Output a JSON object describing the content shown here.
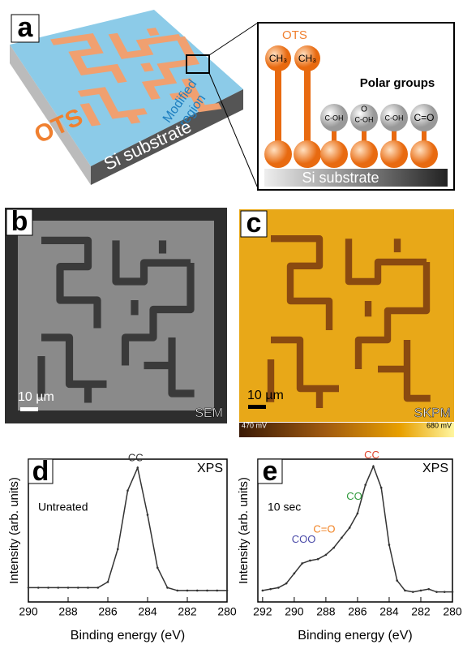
{
  "panel_a": {
    "label": "a",
    "ots": "OTS",
    "modified": [
      "Modified",
      "region"
    ],
    "substrate": "Si substrate",
    "inset": {
      "ots": "OTS",
      "ch3": [
        "CH₃",
        "CH₃"
      ],
      "polar": "Polar groups",
      "groups": [
        "C-OH",
        "O",
        "C-OH",
        "C-OH",
        "C=O"
      ],
      "substrate": "Si substrate"
    }
  },
  "panel_b": {
    "label": "b",
    "scale": "10 µm",
    "tag": "SEM"
  },
  "panel_c": {
    "label": "c",
    "scale": "10 µm",
    "tag": "SKPM",
    "colorbar": [
      "470 mV",
      "680 mV"
    ]
  },
  "chart_data": [
    {
      "type": "line",
      "panel": "d",
      "tag": "XPS",
      "annotation": "Untreated",
      "x_label": "Binding energy (eV)",
      "y_label": "Intensity (arb. units)",
      "x": [
        290,
        289.5,
        289,
        288.5,
        288,
        287.5,
        287,
        286.5,
        286,
        285.5,
        285,
        284.5,
        284,
        283.5,
        283,
        282.5,
        282,
        281.5,
        281,
        280.5,
        280
      ],
      "series": [
        {
          "color": "#333333",
          "values": [
            0.1,
            0.1,
            0.1,
            0.1,
            0.1,
            0.1,
            0.1,
            0.1,
            0.14,
            0.37,
            0.78,
            0.94,
            0.61,
            0.24,
            0.1,
            0.08,
            0.08,
            0.08,
            0.08,
            0.08,
            0.08
          ]
        }
      ],
      "peak_labels": [
        {
          "text": "CC",
          "color": "#333333"
        }
      ],
      "xlim": [
        290,
        280
      ],
      "xticks": [
        290,
        288,
        286,
        284,
        282,
        280
      ],
      "ylim": [
        0,
        1
      ]
    },
    {
      "type": "line",
      "panel": "e",
      "tag": "XPS",
      "annotation": "10 sec",
      "x_label": "Binding energy (eV)",
      "y_label": "Intensity (arb. units)",
      "x": [
        292,
        291.5,
        291,
        290.5,
        290,
        289.5,
        289,
        288.5,
        288,
        287.5,
        287,
        286.5,
        286,
        285.5,
        285,
        284.5,
        284,
        283.5,
        283,
        282.5,
        282,
        281.5,
        281,
        280.5,
        280
      ],
      "series": [
        {
          "color": "#333333",
          "values": [
            0.08,
            0.09,
            0.1,
            0.13,
            0.2,
            0.27,
            0.29,
            0.3,
            0.33,
            0.38,
            0.45,
            0.52,
            0.62,
            0.82,
            0.95,
            0.8,
            0.4,
            0.15,
            0.08,
            0.07,
            0.08,
            0.09,
            0.07,
            0.07,
            0.07
          ]
        }
      ],
      "peak_labels": [
        {
          "text": "CC",
          "color": "#e0442c"
        },
        {
          "text": "CO",
          "color": "#2f9a3c"
        },
        {
          "text": "C=O",
          "color": "#f08020"
        },
        {
          "text": "COO",
          "color": "#4a4aa8"
        }
      ],
      "xlim": [
        292.3,
        280
      ],
      "xticks": [
        292,
        290,
        288,
        286,
        284,
        282,
        280
      ],
      "ylim": [
        0,
        1
      ]
    }
  ]
}
